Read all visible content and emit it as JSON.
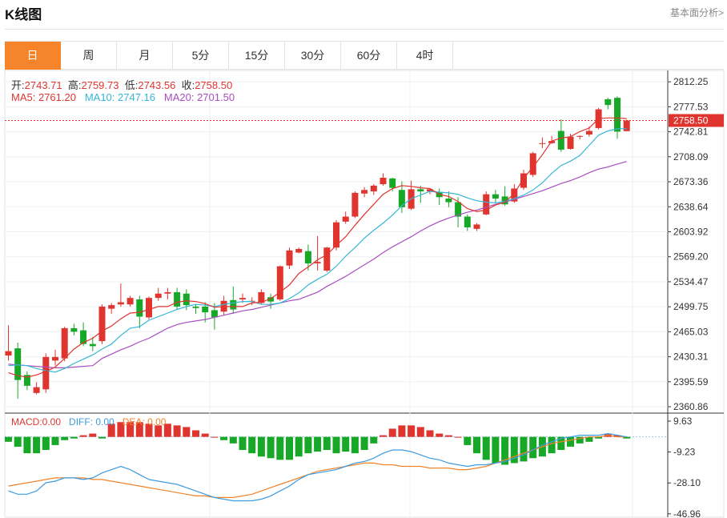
{
  "header": {
    "title": "K线图",
    "fundamental_link": "基本面分析>"
  },
  "tabs": [
    "日",
    "周",
    "月",
    "5分",
    "15分",
    "30分",
    "60分",
    "4时"
  ],
  "active_tab": 0,
  "ohlc": {
    "open_label": "开:",
    "open": "2743.71",
    "high_label": "高:",
    "high": "2759.73",
    "low_label": "低:",
    "low": "2743.56",
    "close_label": "收:",
    "close": "2758.50"
  },
  "ma": {
    "ma5_label": "MA5:",
    "ma5": "2761.20",
    "ma10_label": "MA10:",
    "ma10": "2747.16",
    "ma20_label": "MA20:",
    "ma20": "2701.50"
  },
  "macd_info": {
    "macd_label": "MACD:",
    "macd": "0.00",
    "diff_label": "DIFF:",
    "diff": "0.00",
    "dea_label": "DEA:",
    "dea": "0.00"
  },
  "colors": {
    "up": "#e0342f",
    "down": "#17a828",
    "ma5": "#e0342f",
    "ma10": "#36b7d6",
    "ma20": "#a94ec0",
    "diff": "#3d9be0",
    "dea": "#f0832a",
    "accent": "#f5842a"
  },
  "chart_data": {
    "type": "candlestick",
    "price_axis_ticks": [
      "2812.25",
      "2777.53",
      "2742.81",
      "2708.09",
      "2673.36",
      "2638.64",
      "2603.92",
      "2569.20",
      "2534.47",
      "2499.75",
      "2465.03",
      "2430.31",
      "2395.59",
      "2360.86"
    ],
    "price_range": [
      2352,
      2828
    ],
    "last_price": "2758.50",
    "candles": [
      [
        2432,
        2438,
        2474,
        2425
      ],
      [
        2442,
        2398,
        2450,
        2372
      ],
      [
        2405,
        2390,
        2410,
        2384
      ],
      [
        2380,
        2388,
        2395,
        2378
      ],
      [
        2385,
        2430,
        2435,
        2380
      ],
      [
        2425,
        2430,
        2440,
        2418
      ],
      [
        2428,
        2470,
        2472,
        2424
      ],
      [
        2470,
        2465,
        2476,
        2460
      ],
      [
        2467,
        2448,
        2478,
        2445
      ],
      [
        2448,
        2445,
        2458,
        2438
      ],
      [
        2452,
        2500,
        2503,
        2448
      ],
      [
        2497,
        2502,
        2505,
        2490
      ],
      [
        2503,
        2506,
        2532,
        2500
      ],
      [
        2503,
        2512,
        2515,
        2500
      ],
      [
        2510,
        2486,
        2515,
        2470
      ],
      [
        2485,
        2512,
        2514,
        2482
      ],
      [
        2512,
        2518,
        2526,
        2508
      ],
      [
        2518,
        2520,
        2526,
        2510
      ],
      [
        2520,
        2500,
        2526,
        2496
      ],
      [
        2518,
        2502,
        2524,
        2495
      ],
      [
        2500,
        2498,
        2503,
        2490
      ],
      [
        2500,
        2492,
        2506,
        2478
      ],
      [
        2495,
        2485,
        2505,
        2468
      ],
      [
        2493,
        2508,
        2515,
        2488
      ],
      [
        2509,
        2496,
        2528,
        2490
      ],
      [
        2510,
        2512,
        2518,
        2505
      ],
      [
        2508,
        2508,
        2513,
        2502
      ],
      [
        2505,
        2520,
        2524,
        2503
      ],
      [
        2513,
        2507,
        2518,
        2497
      ],
      [
        2510,
        2556,
        2557,
        2508
      ],
      [
        2557,
        2578,
        2582,
        2552
      ],
      [
        2575,
        2580,
        2582,
        2574
      ],
      [
        2577,
        2560,
        2586,
        2550
      ],
      [
        2560,
        2562,
        2598,
        2550
      ],
      [
        2550,
        2582,
        2583,
        2548
      ],
      [
        2582,
        2617,
        2620,
        2578
      ],
      [
        2618,
        2625,
        2632,
        2615
      ],
      [
        2625,
        2658,
        2660,
        2623
      ],
      [
        2657,
        2662,
        2666,
        2652
      ],
      [
        2660,
        2668,
        2670,
        2655
      ],
      [
        2670,
        2679,
        2685,
        2668
      ],
      [
        2678,
        2665,
        2679,
        2660
      ],
      [
        2662,
        2638,
        2674,
        2630
      ],
      [
        2636,
        2663,
        2675,
        2634
      ],
      [
        2663,
        2660,
        2668,
        2644
      ],
      [
        2660,
        2663,
        2664,
        2656
      ],
      [
        2659,
        2652,
        2664,
        2641
      ],
      [
        2650,
        2645,
        2660,
        2638
      ],
      [
        2645,
        2625,
        2652,
        2610
      ],
      [
        2625,
        2610,
        2628,
        2605
      ],
      [
        2608,
        2614,
        2616,
        2605
      ],
      [
        2628,
        2656,
        2660,
        2627
      ],
      [
        2656,
        2650,
        2662,
        2645
      ],
      [
        2653,
        2642,
        2667,
        2640
      ],
      [
        2646,
        2664,
        2670,
        2644
      ],
      [
        2665,
        2685,
        2690,
        2662
      ],
      [
        2683,
        2713,
        2715,
        2680
      ],
      [
        2727,
        2727,
        2735,
        2720
      ],
      [
        2727,
        2730,
        2737,
        2726
      ],
      [
        2744,
        2718,
        2760,
        2715
      ],
      [
        2719,
        2736,
        2740,
        2718
      ],
      [
        2737,
        2737,
        2738,
        2732
      ],
      [
        2739,
        2744,
        2750,
        2736
      ],
      [
        2748,
        2774,
        2776,
        2746
      ],
      [
        2788,
        2780,
        2790,
        2774
      ],
      [
        2790,
        2743,
        2792,
        2733
      ],
      [
        2743.71,
        2758.5,
        2759.73,
        2743.56
      ]
    ],
    "ma5": [
      2408,
      2404,
      2402,
      2405,
      2410,
      2416,
      2428,
      2441,
      2450,
      2456,
      2466,
      2473,
      2483,
      2491,
      2492,
      2496,
      2500,
      2500,
      2506,
      2508,
      2507,
      2504,
      2499,
      2500,
      2500,
      2500,
      2505,
      2506,
      2511,
      2520,
      2530,
      2546,
      2555,
      2565,
      2572,
      2585,
      2597,
      2613,
      2628,
      2642,
      2656,
      2664,
      2668,
      2667,
      2665,
      2664,
      2656,
      2653,
      2646,
      2636,
      2632,
      2634,
      2641,
      2645,
      2657,
      2678,
      2694,
      2711,
      2730,
      2734,
      2736,
      2743,
      2748,
      2761,
      2762,
      2762,
      2761.2
    ],
    "ma10": [
      2418,
      2419,
      2418,
      2414,
      2411,
      2409,
      2414,
      2421,
      2427,
      2433,
      2441,
      2448,
      2460,
      2470,
      2472,
      2481,
      2486,
      2491,
      2496,
      2500,
      2503,
      2502,
      2500,
      2503,
      2505,
      2507,
      2507,
      2503,
      2503,
      2505,
      2511,
      2519,
      2530,
      2538,
      2545,
      2556,
      2570,
      2582,
      2595,
      2606,
      2616,
      2627,
      2640,
      2650,
      2655,
      2660,
      2659,
      2658,
      2656,
      2651,
      2647,
      2645,
      2644,
      2646,
      2650,
      2655,
      2662,
      2672,
      2685,
      2696,
      2702,
      2710,
      2724,
      2738,
      2744,
      2747,
      2747.16
    ],
    "ma20": [
      2420,
      2419,
      2418,
      2417,
      2416,
      2415,
      2415,
      2416,
      2417,
      2418,
      2428,
      2434,
      2440,
      2445,
      2451,
      2456,
      2463,
      2470,
      2475,
      2478,
      2480,
      2482,
      2485,
      2488,
      2491,
      2494,
      2496,
      2499,
      2502,
      2505,
      2508,
      2510,
      2515,
      2520,
      2528,
      2535,
      2542,
      2550,
      2558,
      2566,
      2575,
      2583,
      2590,
      2597,
      2605,
      2612,
      2618,
      2623,
      2627,
      2631,
      2634,
      2638,
      2642,
      2645,
      2649,
      2653,
      2657,
      2661,
      2666,
      2671,
      2675,
      2680,
      2686,
      2691,
      2694,
      2698,
      2701.5
    ],
    "macd_axis_ticks": [
      "9.63",
      "-9.23",
      "-28.10",
      "-46.96"
    ],
    "macd_range": [
      -49,
      14
    ],
    "macd_hist": [
      -3,
      -6,
      -10,
      -10,
      -8,
      -5,
      -2,
      -1,
      1,
      2,
      -1,
      8,
      9,
      9,
      9,
      8,
      7,
      8,
      7,
      6,
      4,
      2,
      0,
      -2,
      -4,
      -8,
      -10,
      -12,
      -13,
      -14,
      -14,
      -12,
      -10,
      -9,
      -8,
      -10,
      -9,
      -10,
      -8,
      -4,
      1,
      5,
      7,
      7,
      6,
      4,
      2,
      1,
      0,
      -5,
      -10,
      -14,
      -16,
      -17,
      -16,
      -15,
      -13,
      -12,
      -10,
      -8,
      -6,
      -4,
      -3,
      -1,
      2,
      1,
      -1
    ],
    "diff": [
      -33,
      -35,
      -35,
      -33,
      -28,
      -27,
      -25,
      -25,
      -26,
      -25,
      -22,
      -20,
      -18,
      -20,
      -23,
      -26,
      -27,
      -28,
      -29,
      -31,
      -33,
      -35,
      -37,
      -38,
      -39,
      -39,
      -39,
      -38,
      -36,
      -33,
      -30,
      -26,
      -23,
      -22,
      -21,
      -20,
      -18,
      -16,
      -15,
      -13,
      -10,
      -8,
      -8,
      -9,
      -11,
      -13,
      -14,
      -16,
      -17,
      -18,
      -17,
      -17,
      -16,
      -15,
      -13,
      -11,
      -8,
      -5,
      -3,
      -1,
      0,
      1,
      1,
      1,
      2,
      1,
      0
    ],
    "dea": [
      -30,
      -29,
      -28,
      -27,
      -26,
      -25,
      -25,
      -25,
      -25,
      -26,
      -26,
      -27,
      -28,
      -29,
      -30,
      -31,
      -32,
      -33,
      -34,
      -35,
      -36,
      -36,
      -37,
      -37,
      -37,
      -36,
      -35,
      -33,
      -31,
      -29,
      -27,
      -25,
      -23,
      -21,
      -20,
      -19,
      -18,
      -17,
      -16,
      -16,
      -17,
      -17,
      -18,
      -18,
      -18,
      -19,
      -19,
      -19,
      -20,
      -20,
      -19,
      -18,
      -16,
      -14,
      -12,
      -10,
      -8,
      -6,
      -4,
      -3,
      -2,
      -1,
      0,
      0,
      1,
      0,
      0
    ]
  }
}
